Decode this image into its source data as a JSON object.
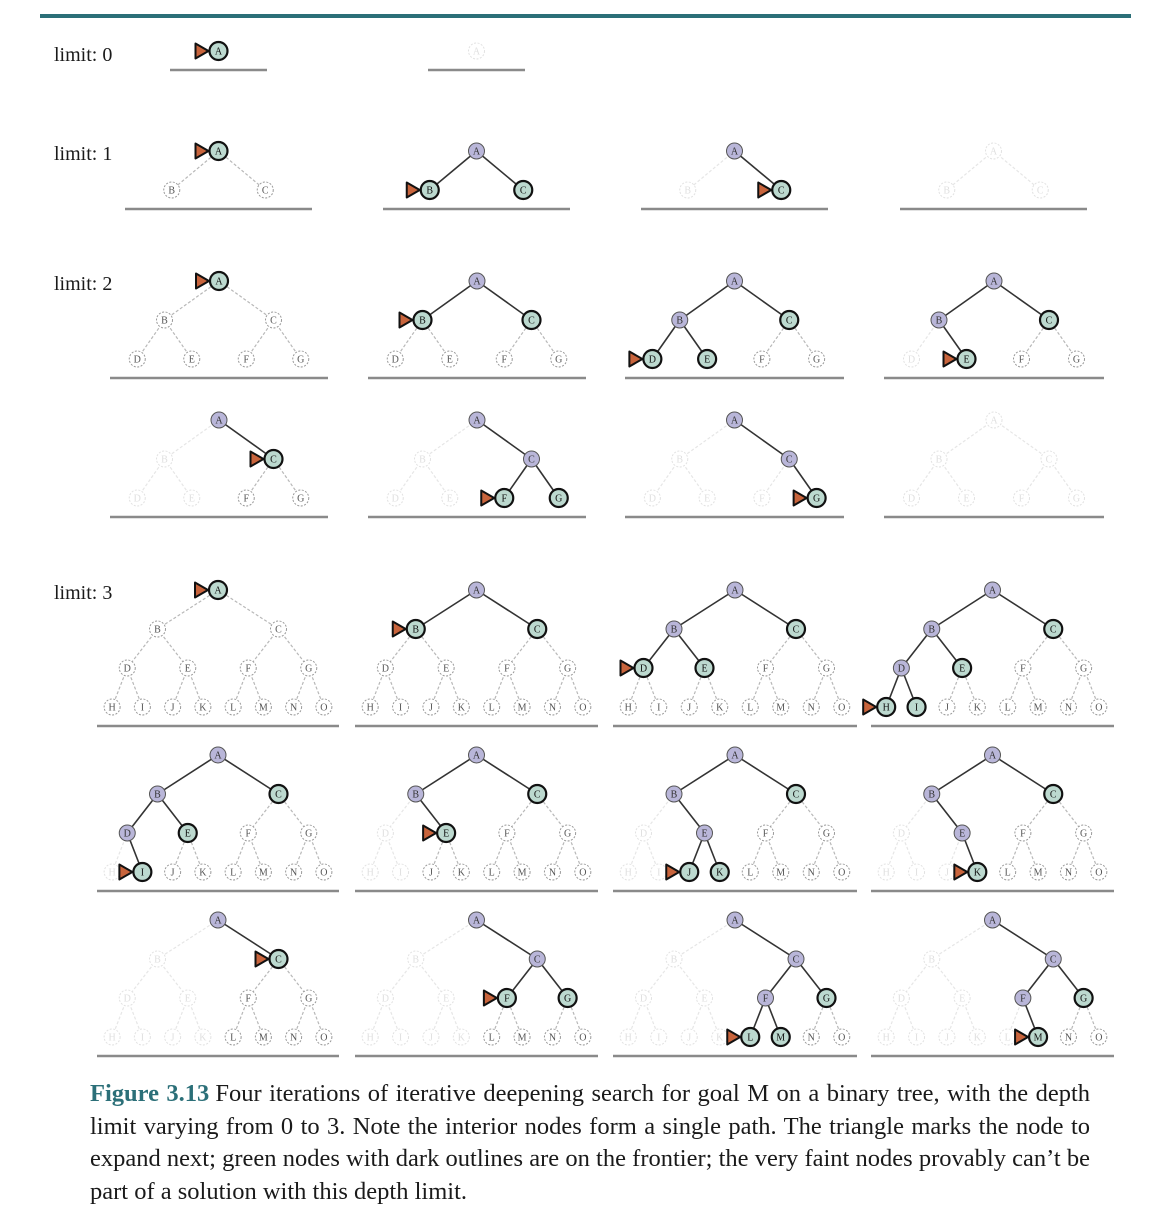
{
  "limits": [
    {
      "id": "limit-0",
      "label": "limit: 0"
    },
    {
      "id": "limit-1",
      "label": "limit: 1"
    },
    {
      "id": "limit-2",
      "label": "limit: 2"
    },
    {
      "id": "limit-3",
      "label": "limit: 3"
    }
  ],
  "node_letters": [
    "A",
    "B",
    "C",
    "D",
    "E",
    "F",
    "G",
    "H",
    "I",
    "J",
    "K",
    "L",
    "M",
    "N",
    "O"
  ],
  "colors": {
    "accent": "#2b6f78",
    "expanded_fill": "#b9b6d9",
    "frontier_fill": "#bcd9cf",
    "marker_fill": "#c8643c"
  },
  "caption": {
    "figure_label": "Figure 3.13",
    "text": "Four iterations of iterative deepening search for goal M on a binary tree, with the depth limit varying from 0 to 3. Note the interior nodes form a single path. The triangle marks the node to expand next; green nodes with dark outlines are on the frontier; the very faint nodes provably can’t be part of a solution with this depth limit."
  },
  "panels": [
    {
      "depth": 0,
      "expanded": [],
      "frontier": [
        0
      ],
      "faint": [],
      "marker": 0
    },
    {
      "depth": 0,
      "expanded": [],
      "frontier": [],
      "faint": [
        0
      ],
      "marker": null
    },
    {
      "depth": 1,
      "expanded": [],
      "frontier": [
        0
      ],
      "faint": [],
      "marker": 0
    },
    {
      "depth": 1,
      "expanded": [
        0
      ],
      "frontier": [
        1,
        2
      ],
      "faint": [],
      "marker": 1
    },
    {
      "depth": 1,
      "expanded": [
        0
      ],
      "frontier": [
        2
      ],
      "faint": [
        1
      ],
      "marker": 2
    },
    {
      "depth": 1,
      "expanded": [],
      "frontier": [],
      "faint": [
        0,
        1,
        2
      ],
      "marker": null
    },
    {
      "depth": 2,
      "expanded": [],
      "frontier": [
        0
      ],
      "faint": [],
      "marker": 0
    },
    {
      "depth": 2,
      "expanded": [
        0
      ],
      "frontier": [
        1,
        2
      ],
      "faint": [],
      "marker": 1
    },
    {
      "depth": 2,
      "expanded": [
        0,
        1
      ],
      "frontier": [
        3,
        4,
        2
      ],
      "faint": [],
      "marker": 3
    },
    {
      "depth": 2,
      "expanded": [
        0,
        1
      ],
      "frontier": [
        4,
        2
      ],
      "faint": [
        3
      ],
      "marker": 4
    },
    {
      "depth": 2,
      "expanded": [
        0
      ],
      "frontier": [
        2
      ],
      "faint": [
        1,
        3,
        4
      ],
      "marker": 2
    },
    {
      "depth": 2,
      "expanded": [
        0,
        2
      ],
      "frontier": [
        5,
        6
      ],
      "faint": [
        1,
        3,
        4
      ],
      "marker": 5
    },
    {
      "depth": 2,
      "expanded": [
        0,
        2
      ],
      "frontier": [
        6
      ],
      "faint": [
        1,
        3,
        4,
        5
      ],
      "marker": 6
    },
    {
      "depth": 2,
      "expanded": [],
      "frontier": [],
      "faint": [
        0,
        1,
        2,
        3,
        4,
        5,
        6
      ],
      "marker": null
    },
    {
      "depth": 3,
      "expanded": [],
      "frontier": [
        0
      ],
      "faint": [],
      "marker": 0
    },
    {
      "depth": 3,
      "expanded": [
        0
      ],
      "frontier": [
        1,
        2
      ],
      "faint": [],
      "marker": 1
    },
    {
      "depth": 3,
      "expanded": [
        0,
        1
      ],
      "frontier": [
        3,
        4,
        2
      ],
      "faint": [],
      "marker": 3
    },
    {
      "depth": 3,
      "expanded": [
        0,
        1,
        3
      ],
      "frontier": [
        7,
        8,
        4,
        2
      ],
      "faint": [],
      "marker": 7
    },
    {
      "depth": 3,
      "expanded": [
        0,
        1,
        3
      ],
      "frontier": [
        8,
        4,
        2
      ],
      "faint": [
        7
      ],
      "marker": 8
    },
    {
      "depth": 3,
      "expanded": [
        0,
        1
      ],
      "frontier": [
        4,
        2
      ],
      "faint": [
        3,
        7,
        8
      ],
      "marker": 4
    },
    {
      "depth": 3,
      "expanded": [
        0,
        1,
        4
      ],
      "frontier": [
        9,
        10,
        2
      ],
      "faint": [
        3,
        7,
        8
      ],
      "marker": 9
    },
    {
      "depth": 3,
      "expanded": [
        0,
        1,
        4
      ],
      "frontier": [
        10,
        2
      ],
      "faint": [
        3,
        7,
        8,
        9
      ],
      "marker": 10
    },
    {
      "depth": 3,
      "expanded": [
        0
      ],
      "frontier": [
        2
      ],
      "faint": [
        1,
        3,
        4,
        7,
        8,
        9,
        10
      ],
      "marker": 2
    },
    {
      "depth": 3,
      "expanded": [
        0,
        2
      ],
      "frontier": [
        5,
        6
      ],
      "faint": [
        1,
        3,
        4,
        7,
        8,
        9,
        10
      ],
      "marker": 5
    },
    {
      "depth": 3,
      "expanded": [
        0,
        2,
        5
      ],
      "frontier": [
        11,
        12,
        6
      ],
      "faint": [
        1,
        3,
        4,
        7,
        8,
        9,
        10
      ],
      "marker": 11
    },
    {
      "depth": 3,
      "expanded": [
        0,
        2,
        5
      ],
      "frontier": [
        12,
        6
      ],
      "faint": [
        1,
        3,
        4,
        7,
        8,
        9,
        10,
        11
      ],
      "marker": 12
    }
  ]
}
